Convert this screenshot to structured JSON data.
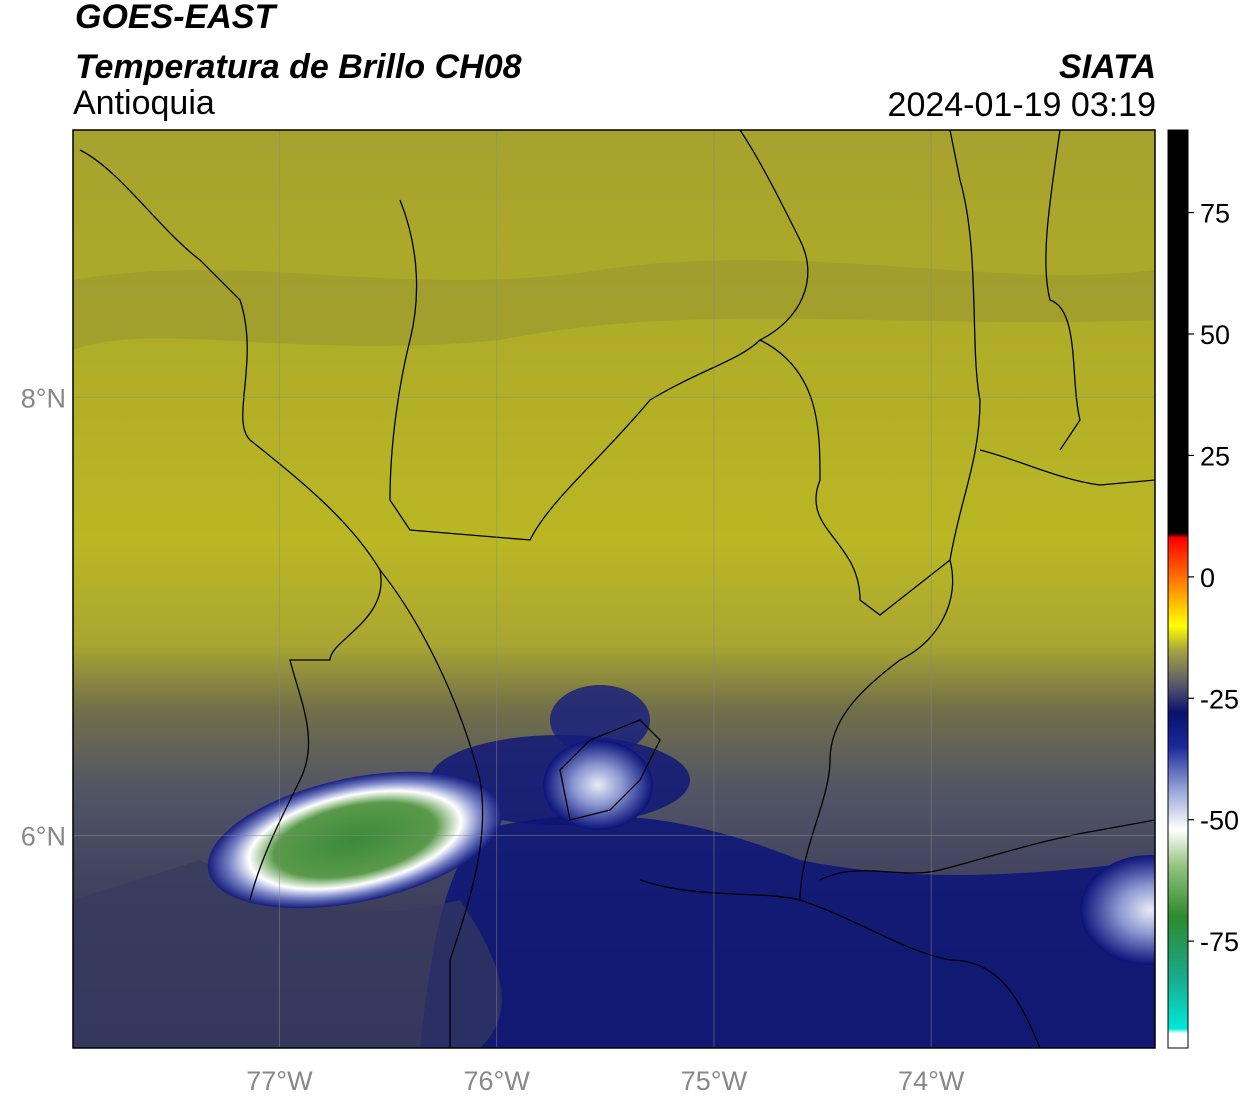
{
  "header": {
    "title": "GOES-EAST",
    "subtitle": "Temperatura de Brillo CH08",
    "region": "Antioquia",
    "source": "SIATA",
    "datetime": "2024-01-19 03:19"
  },
  "map": {
    "xlim": [
      -77.95,
      -72.97
    ],
    "ylim": [
      5.03,
      9.22
    ],
    "xticks": [
      {
        "value": -77,
        "label": "77°W"
      },
      {
        "value": -76,
        "label": "76°W"
      },
      {
        "value": -75,
        "label": "75°W"
      },
      {
        "value": -74,
        "label": "74°W"
      }
    ],
    "yticks": [
      {
        "value": 8,
        "label": "8°N"
      },
      {
        "value": 6,
        "label": "6°N"
      }
    ],
    "grid": true
  },
  "colorbar": {
    "lim": [
      -97,
      92
    ],
    "ticks": [
      75,
      50,
      25,
      0,
      -25,
      -50,
      -75
    ],
    "colormap": [
      {
        "value": -97,
        "color": "#ffffff"
      },
      {
        "value": -94,
        "color": "#ffffff"
      },
      {
        "value": -93,
        "color": "#00e8d8"
      },
      {
        "value": -82,
        "color": "#1aa88a"
      },
      {
        "value": -70,
        "color": "#2e8a2e"
      },
      {
        "value": -60,
        "color": "#8ec07a"
      },
      {
        "value": -52,
        "color": "#ffffff"
      },
      {
        "value": -44,
        "color": "#9aa6d8"
      },
      {
        "value": -35,
        "color": "#1a2a9a"
      },
      {
        "value": -28,
        "color": "#0a106e"
      },
      {
        "value": -22,
        "color": "#5a5a6a"
      },
      {
        "value": -15,
        "color": "#a8a640"
      },
      {
        "value": -10,
        "color": "#ffff00"
      },
      {
        "value": -3,
        "color": "#ff9a00"
      },
      {
        "value": 8,
        "color": "#ff0000"
      },
      {
        "value": 9,
        "color": "#000000"
      },
      {
        "value": 92,
        "color": "#000000"
      }
    ]
  }
}
